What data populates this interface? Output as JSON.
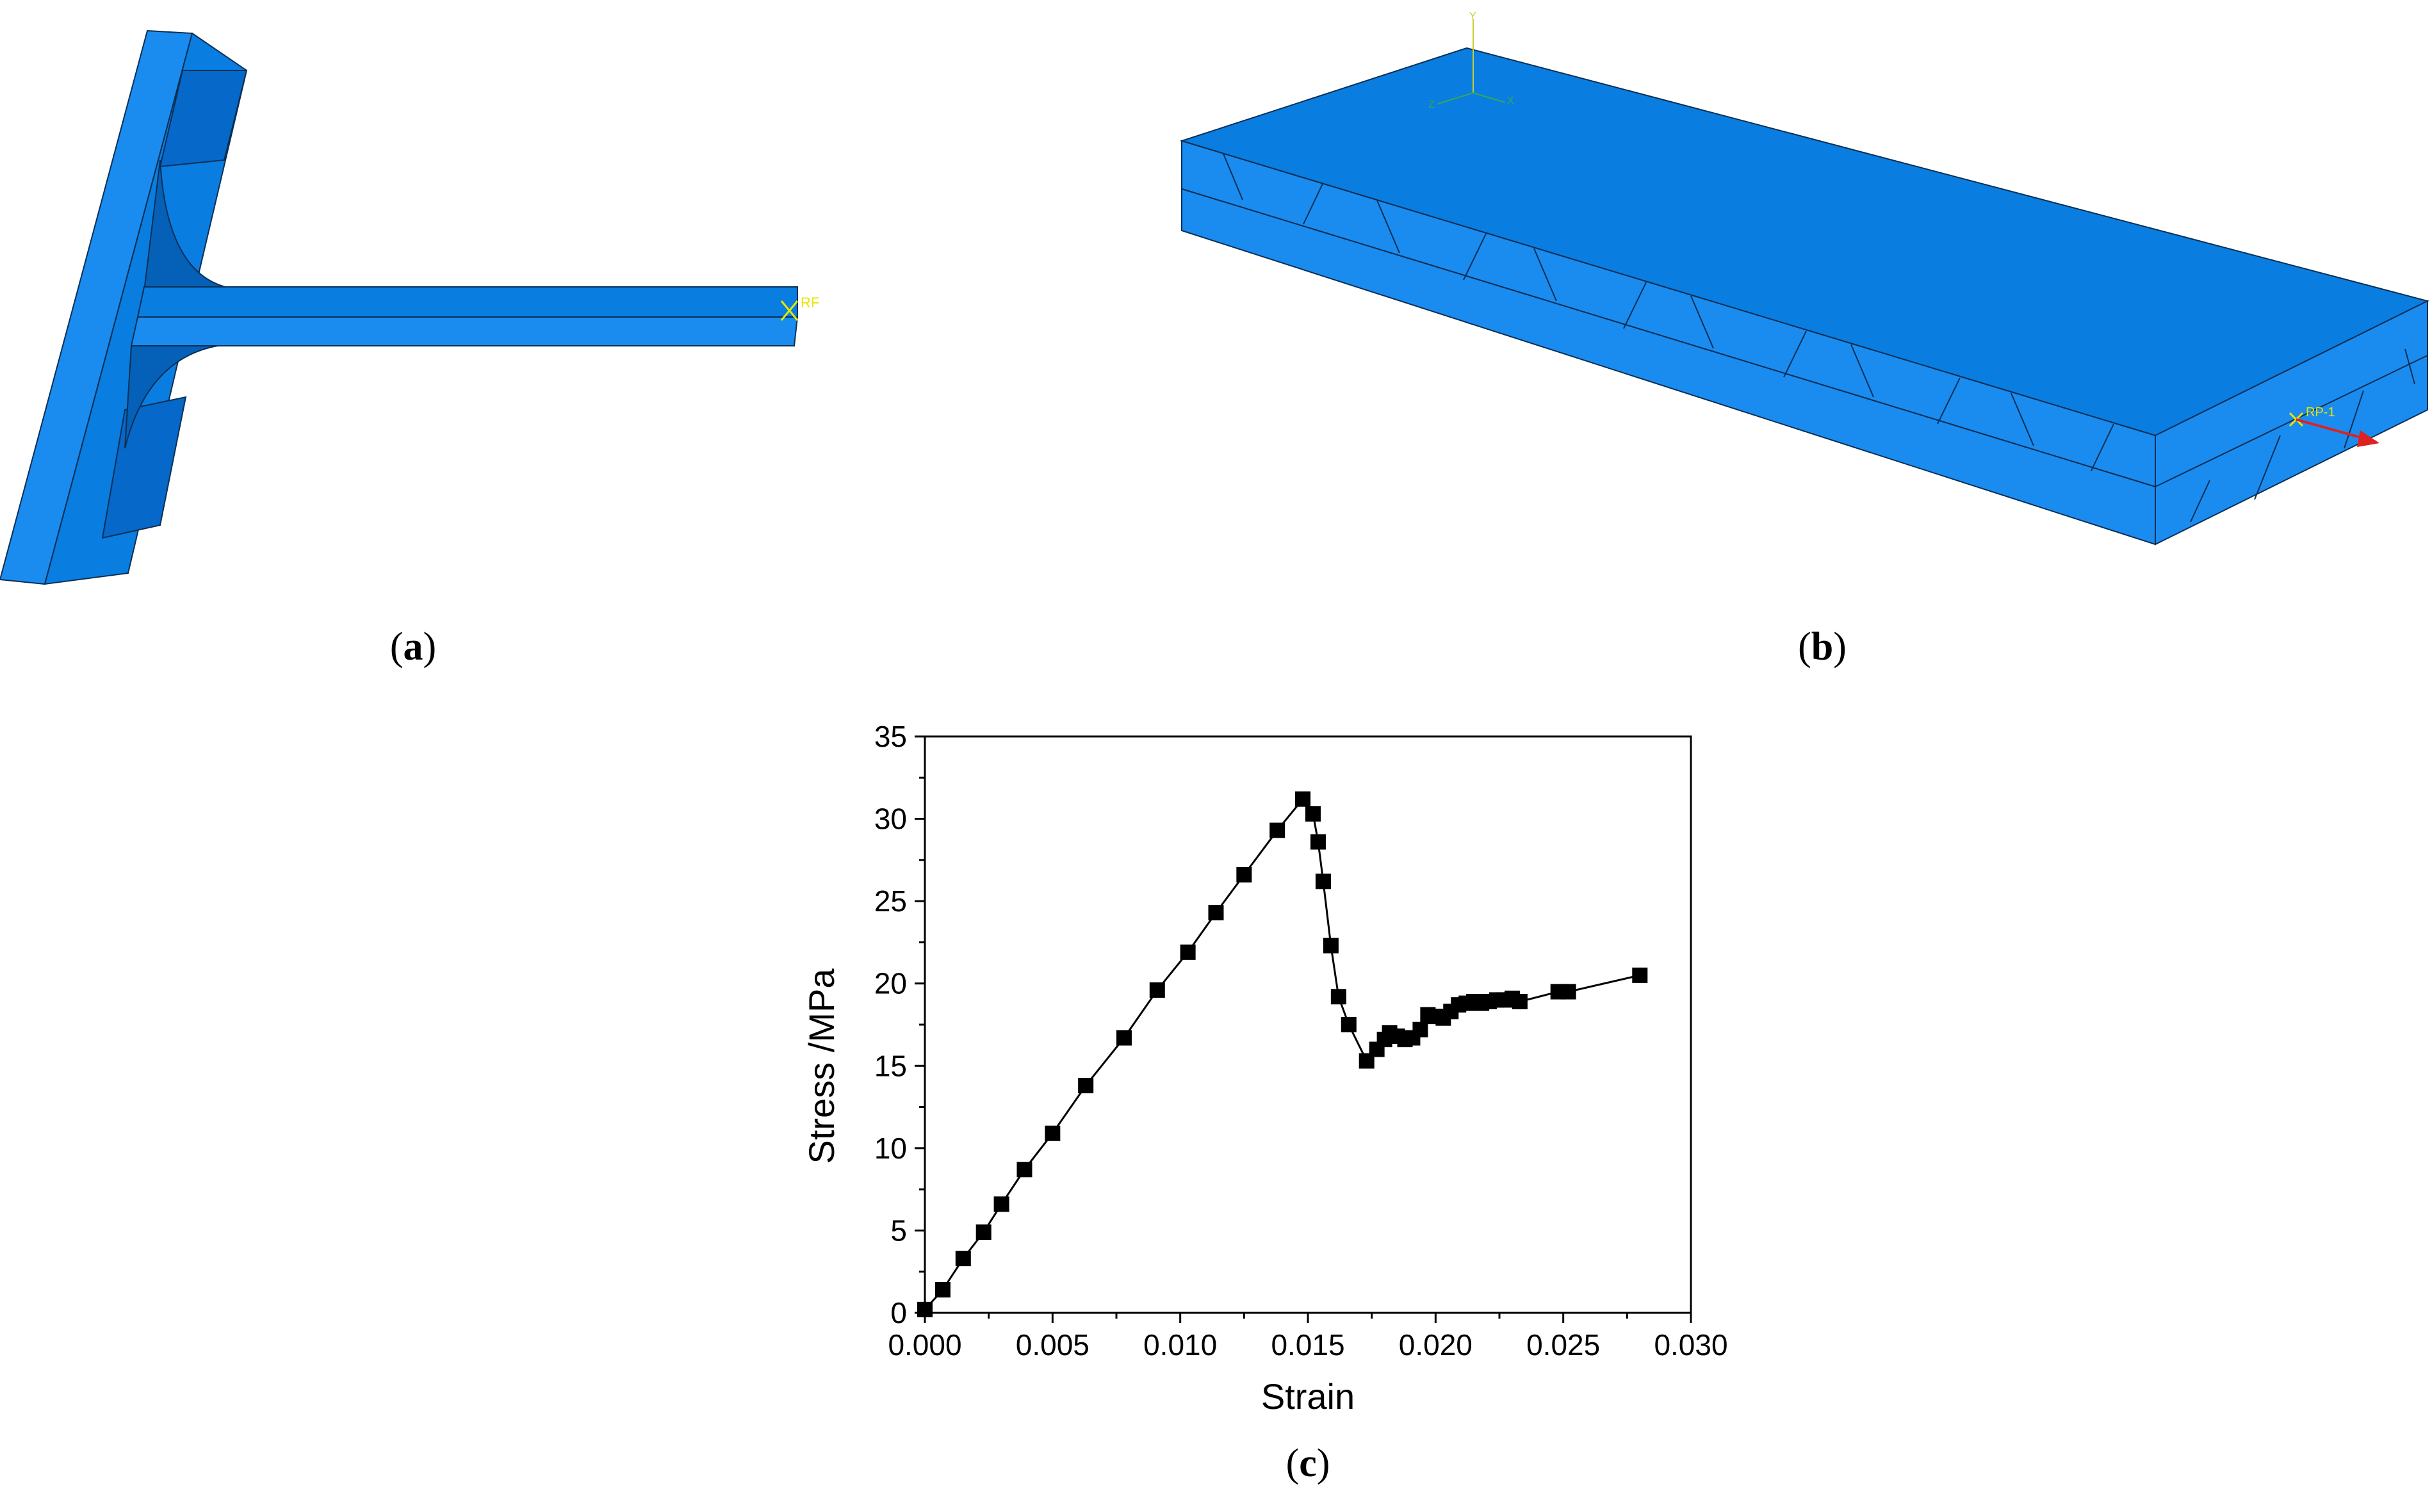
{
  "panels": {
    "a": {
      "caption_open": "(",
      "caption_letter": "a",
      "caption_close": ")",
      "rp_label": "RF"
    },
    "b": {
      "caption_open": "(",
      "caption_letter": "b",
      "caption_close": ")",
      "rp_label": "RP-1",
      "triad_labels": {
        "y": "Y",
        "z": "Z",
        "x": "X"
      }
    },
    "c": {
      "caption_open": "(",
      "caption_letter": "c",
      "caption_close": ")"
    }
  },
  "colors": {
    "model_top": "#0a7de0",
    "model_face": "#1a8cf0",
    "model_dark": "#0560b8",
    "edge": "#0b2f55",
    "marker": "#000000"
  },
  "chart_data": {
    "type": "line",
    "markers": "square",
    "title": "",
    "xlabel": "Strain",
    "ylabel": "Stress /MPa",
    "xlim": [
      0.0,
      0.03
    ],
    "ylim": [
      0,
      35
    ],
    "xticks": [
      "0.000",
      "0.005",
      "0.010",
      "0.015",
      "0.020",
      "0.025",
      "0.030"
    ],
    "yticks": [
      "0",
      "5",
      "10",
      "15",
      "20",
      "25",
      "30",
      "35"
    ],
    "series": [
      {
        "x": [
          0.0,
          0.0007,
          0.0015,
          0.0023,
          0.003,
          0.0039,
          0.005,
          0.0063,
          0.0078,
          0.0091,
          0.0103,
          0.0114,
          0.0125,
          0.0138,
          0.0148,
          0.0152,
          0.0154,
          0.0156,
          0.0159,
          0.0162,
          0.0166,
          0.0173,
          0.0177,
          0.018,
          0.0182,
          0.0185,
          0.0188,
          0.0191,
          0.0194,
          0.0197,
          0.02,
          0.0203,
          0.0206,
          0.0209,
          0.0212,
          0.0215,
          0.0218,
          0.0221,
          0.0224,
          0.0227,
          0.023,
          0.0233,
          0.0248,
          0.0252,
          0.028
        ],
        "y": [
          0.2,
          1.4,
          3.3,
          4.9,
          6.6,
          8.7,
          10.9,
          13.8,
          16.7,
          19.6,
          21.9,
          24.3,
          26.6,
          29.3,
          31.2,
          30.3,
          28.6,
          26.2,
          22.3,
          19.2,
          17.5,
          15.3,
          16.0,
          16.6,
          17.0,
          16.8,
          16.6,
          16.7,
          17.2,
          18.1,
          18.0,
          17.9,
          18.3,
          18.7,
          18.8,
          18.9,
          18.8,
          18.9,
          19.0,
          19.0,
          19.1,
          18.9,
          19.5,
          19.5,
          20.5
        ]
      }
    ]
  }
}
